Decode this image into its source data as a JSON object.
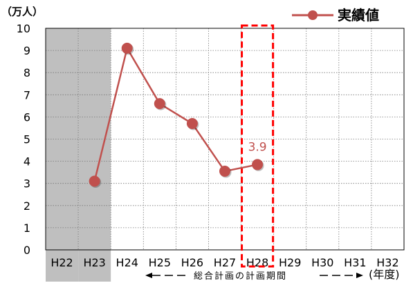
{
  "chart_data": {
    "type": "line",
    "categories": [
      "H22",
      "H23",
      "H24",
      "H25",
      "H26",
      "H27",
      "H28",
      "H29",
      "H30",
      "H31",
      "H32"
    ],
    "series": [
      {
        "name": "実績値",
        "values": [
          null,
          3.1,
          9.1,
          6.6,
          5.7,
          3.55,
          3.85,
          null,
          null,
          null,
          null
        ],
        "color": "#c0504d"
      }
    ],
    "ylim": [
      0,
      10
    ],
    "yticks": [
      0,
      1,
      2,
      3,
      4,
      5,
      6,
      7,
      8,
      9,
      10
    ],
    "ylabel": "（万人）",
    "xlabel": "(年度)",
    "grid": true,
    "legend_position": "top-right",
    "shaded_categories": [
      "H22",
      "H23"
    ],
    "highlight_category": "H28",
    "highlight_color": "#ff0000",
    "annotation": {
      "category": "H28",
      "text": "3.9"
    },
    "period_label": "総合計画の計画期間"
  }
}
